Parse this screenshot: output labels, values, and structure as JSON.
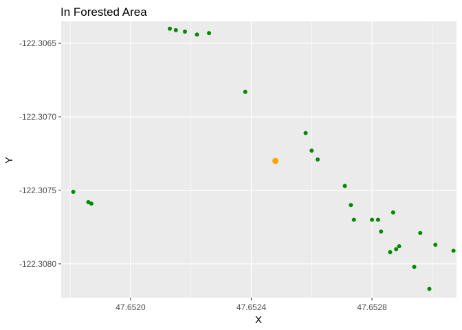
{
  "chart_data": {
    "type": "scatter",
    "title": "In Forested Area",
    "xlabel": "X",
    "ylabel": "Y",
    "xlim": [
      47.65177,
      47.65308
    ],
    "ylim": [
      -122.30823,
      -122.30635
    ],
    "x_ticks": [
      {
        "value": 47.652,
        "label": "47.6520"
      },
      {
        "value": 47.6524,
        "label": "47.6524"
      },
      {
        "value": 47.6528,
        "label": "47.6528"
      }
    ],
    "y_ticks": [
      {
        "value": -122.3065,
        "label": "-122.3065"
      },
      {
        "value": -122.307,
        "label": "-122.3070"
      },
      {
        "value": -122.3075,
        "label": "-122.3075"
      },
      {
        "value": -122.308,
        "label": "-122.3080"
      }
    ],
    "grid": true,
    "legend": "none",
    "series": [
      {
        "color": "#008B00",
        "points": [
          [
            47.65181,
            -122.30751
          ],
          [
            47.65186,
            -122.30758
          ],
          [
            47.65187,
            -122.30759
          ],
          [
            47.65213,
            -122.3064
          ],
          [
            47.65215,
            -122.30641
          ],
          [
            47.65218,
            -122.30642
          ],
          [
            47.65222,
            -122.30644
          ],
          [
            47.65226,
            -122.30643
          ],
          [
            47.65238,
            -122.30683
          ],
          [
            47.65258,
            -122.30711
          ],
          [
            47.6526,
            -122.30723
          ],
          [
            47.65262,
            -122.30729
          ],
          [
            47.65271,
            -122.30747
          ],
          [
            47.65273,
            -122.3076
          ],
          [
            47.65274,
            -122.3077
          ],
          [
            47.6528,
            -122.3077
          ],
          [
            47.65282,
            -122.3077
          ],
          [
            47.65283,
            -122.30778
          ],
          [
            47.65286,
            -122.30792
          ],
          [
            47.65287,
            -122.30765
          ],
          [
            47.65288,
            -122.3079
          ],
          [
            47.65289,
            -122.30788
          ],
          [
            47.65294,
            -122.30802
          ],
          [
            47.65296,
            -122.30779
          ],
          [
            47.65299,
            -122.30817
          ],
          [
            47.65301,
            -122.30787
          ],
          [
            47.65307,
            -122.30791
          ]
        ]
      },
      {
        "color": "#FFA500",
        "points": [
          [
            47.65248,
            -122.3073
          ]
        ]
      }
    ]
  }
}
